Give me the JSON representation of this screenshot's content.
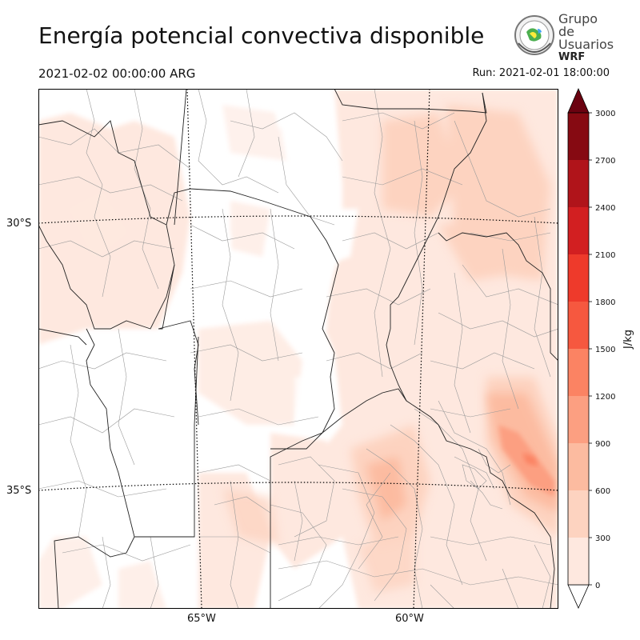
{
  "header": {
    "title": "Energía potencial convectiva disponible",
    "valid_time": "2021-02-02 00:00:00 ARG",
    "run_time": "Run: 2021-02-01 18:00:00"
  },
  "logo": {
    "line1": "Grupo de",
    "line2": "Usuarios",
    "line3": "WRF"
  },
  "map": {
    "lat_labels": [
      "30°S",
      "35°S"
    ],
    "lon_labels": [
      "65°W",
      "60°W"
    ]
  },
  "colorbar": {
    "unit": "J/kg",
    "ticks": [
      "0",
      "300",
      "600",
      "900",
      "1200",
      "1500",
      "1800",
      "2100",
      "2400",
      "2700",
      "3000"
    ],
    "colors": [
      "#fee8df",
      "#fdd3c0",
      "#fcbba0",
      "#fc9f81",
      "#fb8363",
      "#f6583f",
      "#ee3a2b",
      "#d21f21",
      "#b0141a",
      "#860a12"
    ],
    "over_color": "#6b0210",
    "under_color": "#ffffff"
  }
}
